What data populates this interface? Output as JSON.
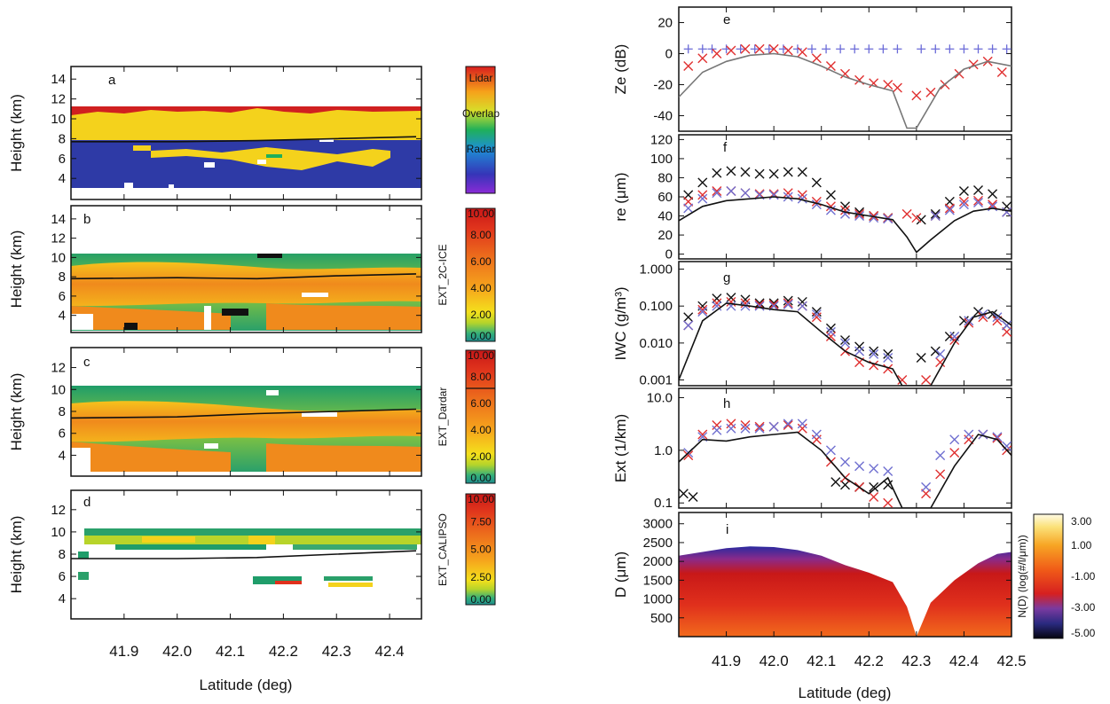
{
  "chart_data": [
    {
      "panel": "a",
      "type": "heatmap",
      "ylabel": "Height (km)",
      "yticks": [
        "4",
        "6",
        "8",
        "10",
        "12",
        "14"
      ],
      "ylim": [
        2.5,
        15
      ],
      "colorbar": {
        "labels": [
          "Lidar",
          "Overlap",
          "Radar"
        ]
      },
      "tropopause_line": [
        [
          41.8,
          7.7
        ],
        [
          42.0,
          7.7
        ],
        [
          42.15,
          7.8
        ],
        [
          42.3,
          8.0
        ],
        [
          42.45,
          8.2
        ]
      ]
    },
    {
      "panel": "b",
      "type": "heatmap",
      "ylabel": "Height (km)",
      "yticks": [
        "4",
        "6",
        "8",
        "10",
        "12",
        "14"
      ],
      "ylim": [
        2.5,
        15
      ],
      "colorbar": {
        "title": "EXT_2C-ICE",
        "ticks": [
          "10.00",
          "8.00",
          "6.00",
          "4.00",
          "2.00",
          "0.00"
        ],
        "range": [
          0,
          10
        ]
      },
      "tropopause_line": [
        [
          41.8,
          7.8
        ],
        [
          42.0,
          7.9
        ],
        [
          42.15,
          7.8
        ],
        [
          42.3,
          8.1
        ],
        [
          42.45,
          8.3
        ]
      ]
    },
    {
      "panel": "c",
      "type": "heatmap",
      "ylabel": "Height (km)",
      "yticks": [
        "4",
        "6",
        "8",
        "10",
        "12"
      ],
      "ylim": [
        2.5,
        13.5
      ],
      "colorbar": {
        "title": "EXT_Dardar",
        "ticks": [
          "10.00",
          "8.00",
          "6.00",
          "4.00",
          "2.00",
          "0.00"
        ],
        "range": [
          0,
          10
        ]
      },
      "tropopause_line": [
        [
          41.8,
          7.4
        ],
        [
          42.0,
          7.5
        ],
        [
          42.15,
          7.8
        ],
        [
          42.3,
          8.0
        ],
        [
          42.45,
          8.2
        ]
      ]
    },
    {
      "panel": "d",
      "type": "heatmap",
      "ylabel": "Height (km)",
      "yticks": [
        "4",
        "6",
        "8",
        "10",
        "12"
      ],
      "ylim": [
        2.5,
        13.5
      ],
      "colorbar": {
        "title": "EXT_CALIPSO",
        "ticks": [
          "10.00",
          "7.50",
          "5.00",
          "2.50",
          "0.00"
        ],
        "range": [
          0,
          10
        ]
      },
      "tropopause_line": [
        [
          41.8,
          7.6
        ],
        [
          42.0,
          7.6
        ],
        [
          42.15,
          7.7
        ],
        [
          42.3,
          8.0
        ],
        [
          42.45,
          8.3
        ]
      ]
    },
    {
      "panel": "left-x-axis",
      "xlabel": "Latitude (deg)",
      "xticks": [
        "41.9",
        "42.0",
        "42.1",
        "42.2",
        "42.3",
        "42.4"
      ],
      "xlim": [
        41.8,
        42.46
      ]
    },
    {
      "panel": "e",
      "type": "scatter",
      "ylabel": "Ze (dB)",
      "yticks": [
        "20",
        "0",
        "-20",
        "-40"
      ],
      "ylim": [
        -50,
        30
      ],
      "series": [
        {
          "marker": "+",
          "color": "#6b6bd8",
          "x": [
            41.82,
            41.85,
            41.87,
            41.9,
            41.93,
            41.96,
            41.99,
            42.02,
            42.05,
            42.08,
            42.11,
            42.14,
            42.17,
            42.2,
            42.23,
            42.26,
            42.31,
            42.34,
            42.37,
            42.4,
            42.43,
            42.46,
            42.49
          ],
          "y": [
            3,
            3,
            3,
            3,
            3,
            3,
            3,
            3,
            3,
            3,
            3,
            3,
            3,
            3,
            3,
            3,
            3,
            3,
            3,
            3,
            3,
            3,
            3
          ]
        },
        {
          "marker": "x",
          "color": "#e03030",
          "x": [
            41.82,
            41.85,
            41.88,
            41.91,
            41.94,
            41.97,
            42.0,
            42.03,
            42.06,
            42.09,
            42.12,
            42.15,
            42.18,
            42.21,
            42.24,
            42.26,
            42.3,
            42.33,
            42.36,
            42.39,
            42.42,
            42.45,
            42.48
          ],
          "y": [
            -8,
            -3,
            0,
            2,
            3,
            3,
            3,
            2,
            1,
            -3,
            -8,
            -13,
            -17,
            -19,
            -20,
            -22,
            -27,
            -25,
            -20,
            -13,
            -7,
            -5,
            -12
          ]
        },
        {
          "type": "line",
          "color": "#777777",
          "x": [
            41.8,
            41.85,
            41.9,
            41.95,
            42.0,
            42.05,
            42.1,
            42.15,
            42.2,
            42.25,
            42.28,
            42.3,
            42.35,
            42.4,
            42.45,
            42.5
          ],
          "y": [
            -28,
            -12,
            -5,
            -1,
            0,
            -2,
            -8,
            -15,
            -20,
            -24,
            -48,
            -48,
            -22,
            -10,
            -5,
            -8
          ]
        }
      ]
    },
    {
      "panel": "f",
      "type": "scatter",
      "ylabel": "re (μm)",
      "yticks": [
        "120",
        "100",
        "80",
        "60",
        "40",
        "20",
        "0"
      ],
      "ylim": [
        -5,
        125
      ],
      "series": [
        {
          "marker": "x",
          "color": "#111111",
          "x": [
            41.82,
            41.85,
            41.88,
            41.91,
            41.94,
            41.97,
            42.0,
            42.03,
            42.06,
            42.09,
            42.12,
            42.15,
            42.18,
            42.21,
            42.24,
            42.31,
            42.34,
            42.37,
            42.4,
            42.43,
            42.46,
            42.49
          ],
          "y": [
            62,
            75,
            85,
            87,
            86,
            84,
            84,
            86,
            86,
            75,
            62,
            50,
            44,
            40,
            38,
            36,
            42,
            55,
            66,
            67,
            63,
            50
          ]
        },
        {
          "marker": "x",
          "color": "#e03030",
          "x": [
            41.82,
            41.85,
            41.88,
            41.91,
            41.94,
            41.97,
            42.0,
            42.03,
            42.06,
            42.09,
            42.12,
            42.15,
            42.18,
            42.21,
            42.24,
            42.28,
            42.3,
            42.34,
            42.37,
            42.4,
            42.43,
            42.46,
            42.49
          ],
          "y": [
            55,
            62,
            66,
            66,
            64,
            63,
            63,
            64,
            62,
            55,
            50,
            46,
            42,
            40,
            38,
            42,
            38,
            40,
            48,
            55,
            56,
            52,
            44
          ]
        },
        {
          "marker": "x",
          "color": "#7070d0",
          "x": [
            41.82,
            41.85,
            41.88,
            41.91,
            41.94,
            41.97,
            42.0,
            42.03,
            42.06,
            42.09,
            42.12,
            42.15,
            42.18,
            42.21,
            42.24,
            42.34,
            42.37,
            42.4,
            42.43,
            42.46,
            42.49
          ],
          "y": [
            48,
            58,
            64,
            66,
            64,
            62,
            62,
            60,
            58,
            52,
            46,
            42,
            40,
            38,
            37,
            40,
            46,
            52,
            54,
            50,
            44
          ]
        },
        {
          "type": "line",
          "color": "#111111",
          "x": [
            41.8,
            41.85,
            41.9,
            41.95,
            42.0,
            42.05,
            42.1,
            42.15,
            42.2,
            42.25,
            42.28,
            42.3,
            42.33,
            42.38,
            42.42,
            42.46,
            42.5
          ],
          "y": [
            35,
            50,
            56,
            58,
            60,
            58,
            52,
            44,
            40,
            36,
            18,
            2,
            15,
            35,
            45,
            48,
            45
          ]
        }
      ]
    },
    {
      "panel": "g",
      "type": "scatter",
      "ylabel": "IWC (g/m³)",
      "yscale": "log",
      "yticks": [
        "1.000",
        "0.100",
        "0.010",
        "0.001"
      ],
      "ylim": [
        0.0007,
        1.6
      ],
      "series": [
        {
          "marker": "x",
          "color": "#111111",
          "x": [
            41.82,
            41.85,
            41.88,
            41.91,
            41.94,
            41.97,
            42.0,
            42.03,
            42.06,
            42.09,
            42.12,
            42.15,
            42.18,
            42.21,
            42.24,
            42.31,
            42.34,
            42.37,
            42.4,
            42.43,
            42.46,
            42.49
          ],
          "y": [
            0.05,
            0.1,
            0.16,
            0.17,
            0.15,
            0.12,
            0.12,
            0.14,
            0.13,
            0.07,
            0.025,
            0.012,
            0.008,
            0.006,
            0.005,
            0.004,
            0.006,
            0.015,
            0.04,
            0.07,
            0.06,
            0.03
          ]
        },
        {
          "marker": "x",
          "color": "#e03030",
          "x": [
            41.82,
            41.85,
            41.88,
            41.91,
            41.94,
            41.97,
            42.0,
            42.03,
            42.06,
            42.09,
            42.12,
            42.15,
            42.18,
            42.21,
            42.24,
            42.27,
            42.32,
            42.35,
            42.38,
            42.41,
            42.44,
            42.47,
            42.49
          ],
          "y": [
            0.03,
            0.08,
            0.12,
            0.13,
            0.12,
            0.11,
            0.11,
            0.12,
            0.1,
            0.05,
            0.015,
            0.006,
            0.003,
            0.0025,
            0.002,
            0.001,
            0.001,
            0.003,
            0.012,
            0.035,
            0.05,
            0.04,
            0.02
          ]
        },
        {
          "marker": "x",
          "color": "#7070d0",
          "x": [
            41.82,
            41.85,
            41.88,
            41.91,
            41.94,
            41.97,
            42.0,
            42.03,
            42.06,
            42.09,
            42.12,
            42.15,
            42.18,
            42.21,
            42.24,
            42.35,
            42.38,
            42.41,
            42.44,
            42.47,
            42.49
          ],
          "y": [
            0.03,
            0.07,
            0.1,
            0.1,
            0.1,
            0.1,
            0.1,
            0.11,
            0.1,
            0.06,
            0.02,
            0.01,
            0.006,
            0.005,
            0.004,
            0.005,
            0.015,
            0.04,
            0.06,
            0.05,
            0.03
          ]
        },
        {
          "type": "line",
          "color": "#111111",
          "x": [
            41.8,
            41.85,
            41.9,
            41.95,
            42.0,
            42.05,
            42.1,
            42.15,
            42.2,
            42.25,
            42.27,
            42.33,
            42.38,
            42.42,
            42.46,
            42.5
          ],
          "y": [
            0.001,
            0.04,
            0.12,
            0.1,
            0.08,
            0.07,
            0.02,
            0.006,
            0.003,
            0.002,
            0.0007,
            0.0007,
            0.01,
            0.05,
            0.07,
            0.03
          ]
        }
      ]
    },
    {
      "panel": "h",
      "type": "scatter",
      "ylabel": "Ext (1/km)",
      "yscale": "log",
      "yticks": [
        "10.0",
        "1.0",
        "0.1"
      ],
      "ylim": [
        0.08,
        15
      ],
      "series": [
        {
          "marker": "x",
          "color": "#111111",
          "x": [
            41.81,
            41.83,
            42.13,
            42.15,
            42.18,
            42.21,
            42.24
          ],
          "y": [
            0.15,
            0.13,
            0.25,
            0.22,
            0.2,
            0.2,
            0.22
          ]
        },
        {
          "marker": "x",
          "color": "#e03030",
          "x": [
            41.82,
            41.85,
            41.88,
            41.91,
            41.94,
            41.97,
            42.0,
            42.03,
            42.06,
            42.09,
            42.12,
            42.15,
            42.18,
            42.21,
            42.24,
            42.32,
            42.35,
            42.38,
            42.41,
            42.44,
            42.47,
            42.49
          ],
          "y": [
            0.8,
            2.0,
            3.0,
            3.2,
            3.0,
            2.8,
            2.8,
            3.0,
            2.6,
            1.6,
            0.6,
            0.3,
            0.2,
            0.13,
            0.1,
            0.15,
            0.35,
            0.9,
            1.6,
            2.0,
            1.7,
            1.0
          ]
        },
        {
          "marker": "x",
          "color": "#7070d0",
          "x": [
            41.82,
            41.85,
            41.88,
            41.91,
            41.94,
            41.97,
            42.0,
            42.03,
            42.06,
            42.09,
            42.12,
            42.15,
            42.18,
            42.21,
            42.24,
            42.32,
            42.35,
            42.38,
            42.41,
            42.44,
            42.47,
            42.49
          ],
          "y": [
            0.9,
            1.8,
            2.4,
            2.6,
            2.6,
            2.6,
            2.8,
            3.2,
            3.2,
            2.0,
            1.0,
            0.6,
            0.5,
            0.45,
            0.4,
            0.2,
            0.8,
            1.6,
            2.0,
            2.0,
            1.8,
            1.2
          ]
        },
        {
          "type": "line",
          "color": "#111111",
          "x": [
            41.8,
            41.85,
            41.9,
            41.95,
            42.0,
            42.05,
            42.1,
            42.15,
            42.2,
            42.24,
            42.27,
            42.33,
            42.38,
            42.43,
            42.47,
            42.5
          ],
          "y": [
            0.6,
            1.6,
            1.5,
            1.8,
            2.0,
            2.2,
            1.0,
            0.3,
            0.15,
            0.3,
            0.08,
            0.08,
            0.5,
            2.0,
            1.6,
            0.8
          ]
        }
      ]
    },
    {
      "panel": "i",
      "type": "heatmap",
      "ylabel": "D (μm)",
      "yticks": [
        "3000",
        "2500",
        "2000",
        "1500",
        "1000",
        "500"
      ],
      "ylim": [
        0,
        3300
      ],
      "colorbar": {
        "title": "N(D) (log(#/l/μm))",
        "ticks": [
          "3.00",
          "1.00",
          "-1.00",
          "-3.00",
          "-5.00"
        ],
        "range": [
          -5,
          3
        ]
      },
      "top_edge": [
        [
          41.8,
          2150
        ],
        [
          41.85,
          2250
        ],
        [
          41.9,
          2350
        ],
        [
          41.95,
          2400
        ],
        [
          42.0,
          2380
        ],
        [
          42.05,
          2300
        ],
        [
          42.1,
          2150
        ],
        [
          42.15,
          1900
        ],
        [
          42.2,
          1700
        ],
        [
          42.25,
          1450
        ],
        [
          42.28,
          800
        ],
        [
          42.3,
          0
        ],
        [
          42.33,
          900
        ],
        [
          42.38,
          1500
        ],
        [
          42.43,
          1950
        ],
        [
          42.47,
          2200
        ],
        [
          42.5,
          2250
        ]
      ]
    },
    {
      "panel": "right-x-axis",
      "xlabel": "Latitude (deg)",
      "xticks": [
        "41.9",
        "42.0",
        "42.1",
        "42.2",
        "42.3",
        "42.4",
        "42.5"
      ],
      "xlim": [
        41.8,
        42.5
      ]
    }
  ]
}
